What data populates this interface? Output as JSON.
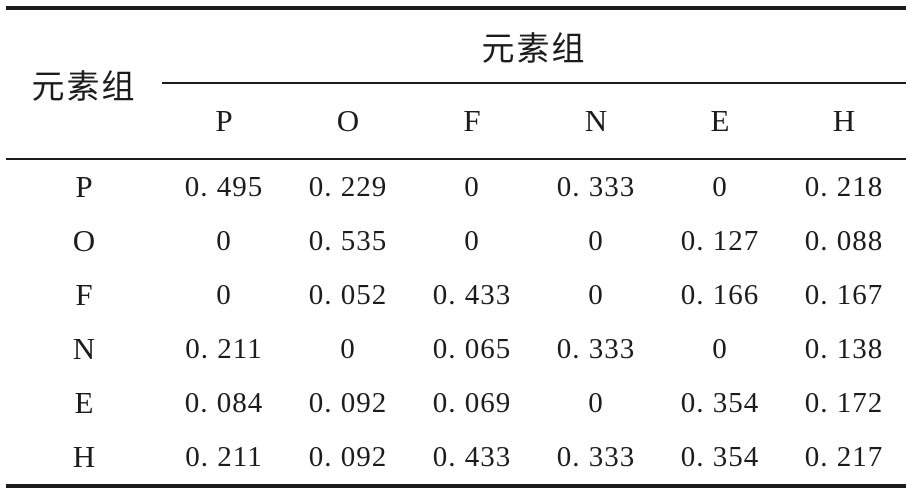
{
  "table": {
    "stub_header": "元素组",
    "group_header": "元素组",
    "columns": [
      "P",
      "O",
      "F",
      "N",
      "E",
      "H"
    ],
    "rows": [
      {
        "label": "P",
        "values": [
          "0. 495",
          "0. 229",
          "0",
          "0. 333",
          "0",
          "0. 218"
        ]
      },
      {
        "label": "O",
        "values": [
          "0",
          "0. 535",
          "0",
          "0",
          "0. 127",
          "0. 088"
        ]
      },
      {
        "label": "F",
        "values": [
          "0",
          "0. 052",
          "0. 433",
          "0",
          "0. 166",
          "0. 167"
        ]
      },
      {
        "label": "N",
        "values": [
          "0. 211",
          "0",
          "0. 065",
          "0. 333",
          "0",
          "0. 138"
        ]
      },
      {
        "label": "E",
        "values": [
          "0. 084",
          "0. 092",
          "0. 069",
          "0",
          "0. 354",
          "0. 172"
        ]
      },
      {
        "label": "H",
        "values": [
          "0. 211",
          "0. 092",
          "0. 433",
          "0. 333",
          "0. 354",
          "0. 217"
        ]
      }
    ]
  },
  "chart_data": {
    "type": "table",
    "title": "",
    "stub_header": "元素组",
    "group_header": "元素组",
    "columns": [
      "P",
      "O",
      "F",
      "N",
      "E",
      "H"
    ],
    "row_labels": [
      "P",
      "O",
      "F",
      "N",
      "E",
      "H"
    ],
    "values": [
      [
        0.495,
        0.229,
        0,
        0.333,
        0,
        0.218
      ],
      [
        0,
        0.535,
        0,
        0,
        0.127,
        0.088
      ],
      [
        0,
        0.052,
        0.433,
        0,
        0.166,
        0.167
      ],
      [
        0.211,
        0,
        0.065,
        0.333,
        0,
        0.138
      ],
      [
        0.084,
        0.092,
        0.069,
        0,
        0.354,
        0.172
      ],
      [
        0.211,
        0.092,
        0.433,
        0.333,
        0.354,
        0.217
      ]
    ]
  }
}
